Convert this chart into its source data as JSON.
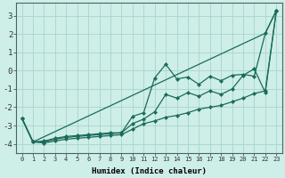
{
  "xlabel": "Humidex (Indice chaleur)",
  "ylabel": "",
  "background_color": "#ceeee8",
  "grid_color": "#aad4ce",
  "line_color": "#1a6b5a",
  "xlim": [
    -0.5,
    23.5
  ],
  "ylim": [
    -4.5,
    3.7
  ],
  "xticks": [
    0,
    1,
    2,
    3,
    4,
    5,
    6,
    7,
    8,
    9,
    10,
    11,
    12,
    13,
    14,
    15,
    16,
    17,
    18,
    19,
    20,
    21,
    22,
    23
  ],
  "yticks": [
    -4,
    -3,
    -2,
    -1,
    0,
    1,
    2,
    3
  ],
  "lines": [
    {
      "x": [
        0,
        1,
        22,
        23
      ],
      "y": [
        -2.6,
        -3.9,
        2.05,
        3.3
      ]
    },
    {
      "x": [
        0,
        1,
        2,
        3,
        4,
        5,
        6,
        7,
        8,
        9,
        10,
        11,
        12,
        13,
        14,
        15,
        16,
        17,
        18,
        19,
        20,
        21,
        22,
        23
      ],
      "y": [
        -2.6,
        -3.9,
        -3.85,
        -3.7,
        -3.6,
        -3.55,
        -3.5,
        -3.45,
        -3.4,
        -3.4,
        -2.5,
        -2.3,
        -0.4,
        0.35,
        -0.45,
        -0.35,
        -0.75,
        -0.3,
        -0.55,
        -0.25,
        -0.2,
        -0.3,
        2.05,
        3.3
      ]
    },
    {
      "x": [
        0,
        1,
        2,
        3,
        4,
        5,
        6,
        7,
        8,
        9,
        10,
        11,
        12,
        13,
        14,
        15,
        16,
        17,
        18,
        19,
        20,
        21,
        22,
        23
      ],
      "y": [
        -2.6,
        -3.9,
        -3.9,
        -3.75,
        -3.65,
        -3.6,
        -3.55,
        -3.5,
        -3.45,
        -3.4,
        -2.9,
        -2.65,
        -2.25,
        -1.3,
        -1.5,
        -1.2,
        -1.4,
        -1.1,
        -1.3,
        -1.0,
        -0.25,
        0.1,
        -1.2,
        3.3
      ]
    },
    {
      "x": [
        0,
        1,
        2,
        3,
        4,
        5,
        6,
        7,
        8,
        9,
        10,
        11,
        12,
        13,
        14,
        15,
        16,
        17,
        18,
        19,
        20,
        21,
        22,
        23
      ],
      "y": [
        -2.6,
        -3.9,
        -3.95,
        -3.85,
        -3.75,
        -3.7,
        -3.65,
        -3.6,
        -3.55,
        -3.5,
        -3.2,
        -2.9,
        -2.75,
        -2.55,
        -2.45,
        -2.3,
        -2.1,
        -2.0,
        -1.9,
        -1.7,
        -1.5,
        -1.25,
        -1.1,
        3.3
      ]
    }
  ]
}
